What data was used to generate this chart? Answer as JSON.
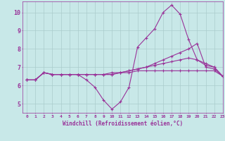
{
  "background_color": "#c8e8e8",
  "grid_color": "#aacccc",
  "line_color": "#993399",
  "marker": "+",
  "xlim": [
    -0.5,
    23
  ],
  "ylim": [
    4.5,
    10.6
  ],
  "xlabel": "Windchill (Refroidissement éolien,°C)",
  "xticks": [
    0,
    1,
    2,
    3,
    4,
    5,
    6,
    7,
    8,
    9,
    10,
    11,
    12,
    13,
    14,
    15,
    16,
    17,
    18,
    19,
    20,
    21,
    22,
    23
  ],
  "yticks": [
    5,
    6,
    7,
    8,
    9,
    10
  ],
  "series": [
    [
      6.3,
      6.3,
      6.7,
      6.6,
      6.6,
      6.6,
      6.6,
      6.3,
      5.9,
      5.2,
      4.7,
      5.1,
      5.9,
      8.1,
      8.6,
      9.1,
      10.0,
      10.4,
      9.9,
      8.5,
      7.4,
      7.1,
      7.0,
      6.5
    ],
    [
      6.3,
      6.3,
      6.7,
      6.6,
      6.6,
      6.6,
      6.6,
      6.6,
      6.6,
      6.6,
      6.6,
      6.7,
      6.8,
      6.9,
      7.0,
      7.2,
      7.4,
      7.6,
      7.8,
      8.0,
      8.3,
      7.0,
      6.9,
      6.5
    ],
    [
      6.3,
      6.3,
      6.7,
      6.6,
      6.6,
      6.6,
      6.6,
      6.6,
      6.6,
      6.6,
      6.6,
      6.7,
      6.8,
      6.9,
      7.0,
      7.1,
      7.2,
      7.3,
      7.4,
      7.5,
      7.4,
      7.2,
      7.0,
      6.5
    ],
    [
      6.3,
      6.3,
      6.7,
      6.6,
      6.6,
      6.6,
      6.6,
      6.6,
      6.6,
      6.6,
      6.7,
      6.7,
      6.7,
      6.8,
      6.8,
      6.8,
      6.8,
      6.8,
      6.8,
      6.8,
      6.8,
      6.8,
      6.8,
      6.5
    ]
  ]
}
